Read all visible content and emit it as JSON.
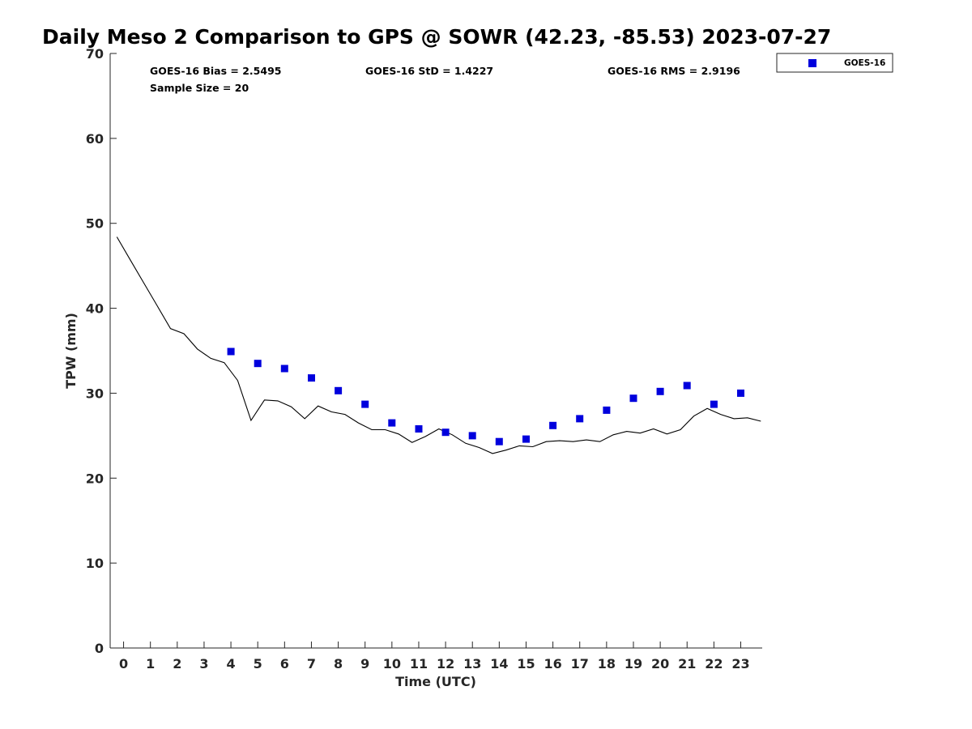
{
  "chart_data": {
    "type": "scatter",
    "title": "Daily Meso 2 Comparison to GPS @ SOWR (42.23, -85.53) 2023-07-27",
    "xlabel": "Time (UTC)",
    "ylabel": "TPW (mm)",
    "xlim": [
      -0.5,
      23.8
    ],
    "ylim": [
      0,
      70
    ],
    "x_ticks": [
      "0",
      "1",
      "2",
      "3",
      "4",
      "5",
      "6",
      "7",
      "8",
      "9",
      "10",
      "11",
      "12",
      "13",
      "14",
      "15",
      "16",
      "17",
      "18",
      "19",
      "20",
      "21",
      "22",
      "23"
    ],
    "y_ticks": [
      "0",
      "10",
      "20",
      "30",
      "40",
      "50",
      "60",
      "70"
    ],
    "grid": false,
    "legend_position": "top-right",
    "stats": {
      "bias": "GOES-16 Bias = 2.5495",
      "std": "GOES-16 StD = 1.4227",
      "rms": "GOES-16 RMS = 2.9196",
      "sample": "Sample Size = 20"
    },
    "series": [
      {
        "name": "GOES-16",
        "kind": "scatter",
        "color": "#0000dd",
        "marker": "square",
        "x": [
          4,
          5,
          6,
          7,
          8,
          9,
          10,
          11,
          12,
          13,
          14,
          15,
          16,
          17,
          18,
          19,
          20,
          21,
          22,
          23
        ],
        "y": [
          34.9,
          33.5,
          32.9,
          31.8,
          30.3,
          28.7,
          26.5,
          25.8,
          25.4,
          25.0,
          24.3,
          24.6,
          26.2,
          27.0,
          28.0,
          29.4,
          30.2,
          30.9,
          28.7,
          30.0
        ]
      },
      {
        "kind": "line",
        "color": "#000000",
        "x": [
          -0.25,
          0.25,
          0.75,
          1.25,
          1.75,
          2.25,
          2.75,
          3.25,
          3.75,
          4.25,
          4.75,
          5.25,
          5.75,
          6.25,
          6.75,
          7.25,
          7.75,
          8.25,
          8.75,
          9.25,
          9.75,
          10.25,
          10.75,
          11.25,
          11.75,
          12.25,
          12.75,
          13.25,
          13.75,
          14.25,
          14.75,
          15.25,
          15.75,
          16.25,
          16.75,
          17.25,
          17.75,
          18.25,
          18.75,
          19.25,
          19.75,
          20.25,
          20.75,
          21.25,
          21.75,
          22.25,
          22.75,
          23.25,
          23.75
        ],
        "y": [
          48.4,
          45.7,
          43.0,
          40.3,
          37.6,
          37.0,
          35.2,
          34.1,
          33.6,
          31.5,
          26.8,
          29.2,
          29.1,
          28.4,
          27.0,
          28.5,
          27.8,
          27.5,
          26.5,
          25.7,
          25.7,
          25.2,
          24.2,
          24.9,
          25.8,
          25.1,
          24.1,
          23.6,
          22.9,
          23.3,
          23.8,
          23.7,
          24.3,
          24.4,
          24.3,
          24.5,
          24.3,
          25.1,
          25.5,
          25.3,
          25.8,
          25.2,
          25.7,
          27.3,
          28.2,
          27.5,
          27.0,
          27.1,
          26.7
        ]
      }
    ]
  }
}
